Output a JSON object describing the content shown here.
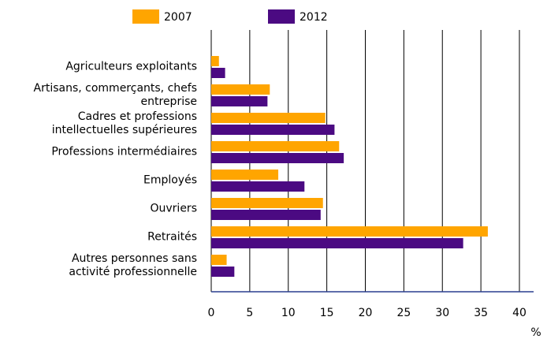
{
  "chart_data": {
    "type": "hbar",
    "categories": [
      "Agriculteurs exploitants",
      "Artisans, commerçants, chefs\nentreprise",
      "Cadres et professions\nintellectuelles supérieures",
      "Professions intermédiaires",
      "Employés",
      "Ouvriers",
      "Retraités",
      "Autres personnes sans\nactivité professionnelle"
    ],
    "series": [
      {
        "name": "2007",
        "color": "#ffa500",
        "values": [
          1.0,
          7.6,
          14.8,
          16.6,
          8.7,
          14.5,
          35.9,
          2.0
        ]
      },
      {
        "name": "2012",
        "color": "#4b0a82",
        "values": [
          1.8,
          7.3,
          16.0,
          17.2,
          12.1,
          14.2,
          32.7,
          3.0
        ]
      }
    ],
    "xlabel": "%",
    "xlim": [
      0,
      40
    ],
    "xticks": [
      0,
      5,
      10,
      15,
      20,
      25,
      30,
      35,
      40
    ],
    "grid": true
  }
}
